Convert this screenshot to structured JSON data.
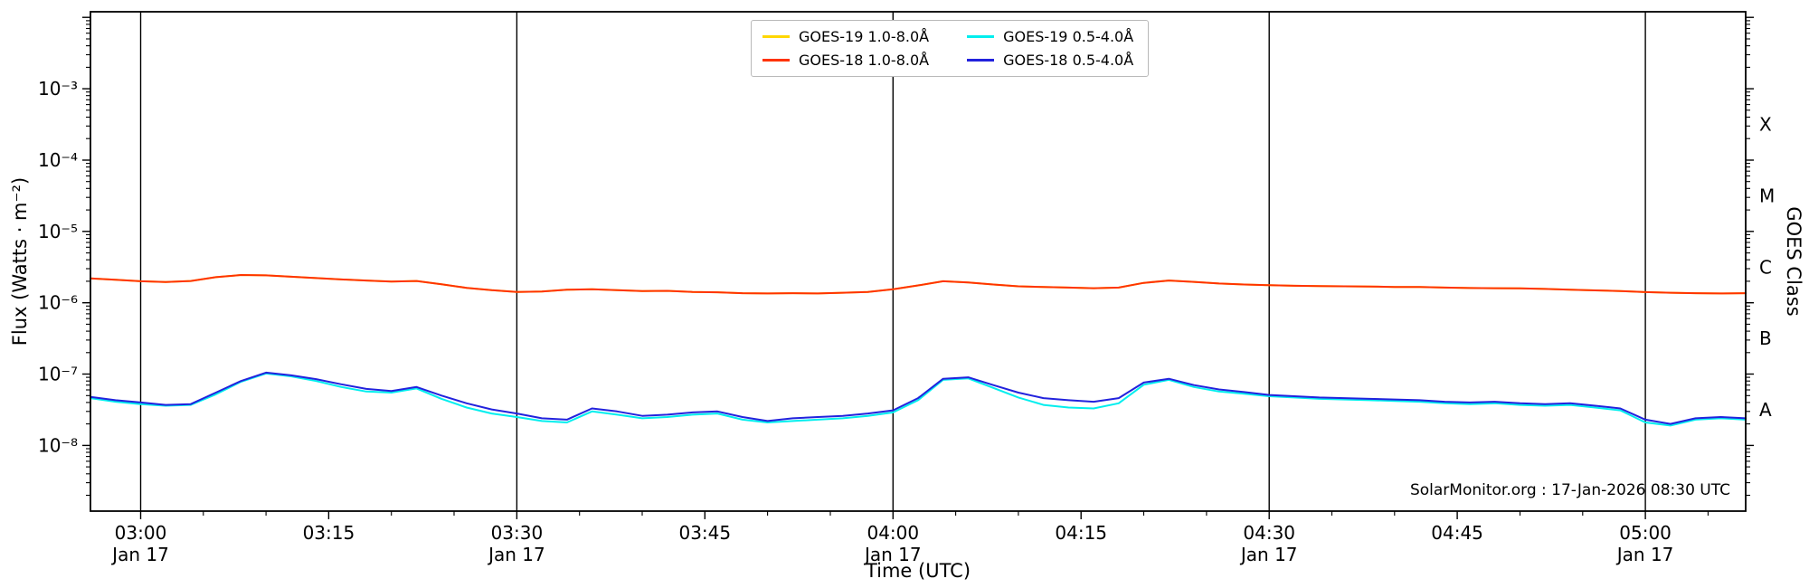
{
  "figure": {
    "xlabel": "Time (UTC)",
    "ylabel_left": "Flux (Watts · m⁻²)",
    "ylabel_right": "GOES Class",
    "watermark": "SolarMonitor.org : 17-Jan-2026 08:30 UTC"
  },
  "chart_data": {
    "type": "line",
    "title": "",
    "xlabel": "Time (UTC)",
    "ylabel": "Flux (Watts · m⁻²)",
    "ylabel_right": "GOES Class",
    "y_scale": "log",
    "ylim": [
      1.2e-09,
      0.012
    ],
    "xlim": [
      -4,
      128
    ],
    "x_unit": "minutes after 03:00 UTC on Jan 17",
    "grid": "vertical lines at each half hour",
    "legend_position": "top-center",
    "x_ticks": [
      {
        "t": 0,
        "label": "03:00",
        "sub": "Jan 17",
        "line": true
      },
      {
        "t": 15,
        "label": "03:15"
      },
      {
        "t": 30,
        "label": "03:30",
        "sub": "Jan 17",
        "line": true
      },
      {
        "t": 45,
        "label": "03:45"
      },
      {
        "t": 60,
        "label": "04:00",
        "sub": "Jan 17",
        "line": true
      },
      {
        "t": 75,
        "label": "04:15"
      },
      {
        "t": 90,
        "label": "04:30",
        "sub": "Jan 17",
        "line": true
      },
      {
        "t": 105,
        "label": "04:45"
      },
      {
        "t": 120,
        "label": "05:00",
        "sub": "Jan 17",
        "line": true
      }
    ],
    "y_ticks": [
      {
        "v": 0.001,
        "label": "10⁻³"
      },
      {
        "v": 0.0001,
        "label": "10⁻⁴"
      },
      {
        "v": 1e-05,
        "label": "10⁻⁵"
      },
      {
        "v": 1e-06,
        "label": "10⁻⁶"
      },
      {
        "v": 1e-07,
        "label": "10⁻⁷"
      },
      {
        "v": 1e-08,
        "label": "10⁻⁸"
      }
    ],
    "goes_classes": [
      {
        "label": "X",
        "v": 0.000316
      },
      {
        "label": "M",
        "v": 3.16e-05
      },
      {
        "label": "C",
        "v": 3.16e-06
      },
      {
        "label": "B",
        "v": 3.16e-07
      },
      {
        "label": "A",
        "v": 3.16e-08
      }
    ],
    "x": [
      -4,
      -2,
      0,
      2,
      4,
      6,
      8,
      10,
      12,
      14,
      16,
      18,
      20,
      22,
      24,
      26,
      28,
      30,
      32,
      34,
      36,
      38,
      40,
      42,
      44,
      46,
      48,
      50,
      52,
      54,
      56,
      58,
      60,
      62,
      64,
      66,
      68,
      70,
      72,
      74,
      76,
      78,
      80,
      82,
      84,
      86,
      88,
      90,
      92,
      94,
      96,
      98,
      100,
      102,
      104,
      106,
      108,
      110,
      112,
      114,
      116,
      118,
      120,
      122,
      124,
      126,
      128
    ],
    "series": [
      {
        "name": "GOES-19 1.0-8.0Å",
        "color": "#ffd700",
        "scale": 1e-06,
        "values": [
          2.2,
          2.1,
          2.0,
          1.95,
          2.02,
          2.28,
          2.45,
          2.42,
          2.32,
          2.22,
          2.12,
          2.05,
          1.98,
          2.02,
          1.82,
          1.62,
          1.5,
          1.42,
          1.44,
          1.52,
          1.55,
          1.5,
          1.46,
          1.47,
          1.42,
          1.4,
          1.36,
          1.35,
          1.36,
          1.35,
          1.38,
          1.42,
          1.55,
          1.75,
          2.0,
          1.92,
          1.8,
          1.7,
          1.66,
          1.63,
          1.6,
          1.63,
          1.9,
          2.05,
          1.96,
          1.86,
          1.8,
          1.76,
          1.73,
          1.71,
          1.7,
          1.69,
          1.66,
          1.66,
          1.63,
          1.61,
          1.6,
          1.59,
          1.56,
          1.52,
          1.49,
          1.46,
          1.41,
          1.38,
          1.36,
          1.35,
          1.36
        ]
      },
      {
        "name": "GOES-18 1.0-8.0Å",
        "color": "#ff3300",
        "scale": 1e-06,
        "values": [
          2.2,
          2.1,
          2.0,
          1.95,
          2.02,
          2.28,
          2.45,
          2.42,
          2.32,
          2.22,
          2.12,
          2.05,
          1.98,
          2.02,
          1.82,
          1.62,
          1.5,
          1.42,
          1.44,
          1.52,
          1.55,
          1.5,
          1.46,
          1.47,
          1.42,
          1.4,
          1.36,
          1.35,
          1.36,
          1.35,
          1.38,
          1.42,
          1.55,
          1.75,
          2.0,
          1.92,
          1.8,
          1.7,
          1.66,
          1.63,
          1.6,
          1.63,
          1.9,
          2.05,
          1.96,
          1.86,
          1.8,
          1.76,
          1.73,
          1.71,
          1.7,
          1.69,
          1.66,
          1.66,
          1.63,
          1.61,
          1.6,
          1.59,
          1.56,
          1.52,
          1.49,
          1.46,
          1.41,
          1.38,
          1.36,
          1.35,
          1.36
        ]
      },
      {
        "name": "GOES-19 0.5-4.0Å",
        "color": "#00eeee",
        "scale": 1e-08,
        "values": [
          4.6,
          4.1,
          3.8,
          3.6,
          3.7,
          5.2,
          7.8,
          10.2,
          9.3,
          8.0,
          6.6,
          5.7,
          5.5,
          6.3,
          4.5,
          3.4,
          2.8,
          2.5,
          2.2,
          2.1,
          3.0,
          2.7,
          2.4,
          2.5,
          2.7,
          2.8,
          2.3,
          2.1,
          2.2,
          2.3,
          2.4,
          2.6,
          2.9,
          4.3,
          8.3,
          8.7,
          6.4,
          4.7,
          3.7,
          3.4,
          3.3,
          3.9,
          7.1,
          8.3,
          6.6,
          5.7,
          5.3,
          4.9,
          4.7,
          4.5,
          4.4,
          4.3,
          4.2,
          4.1,
          3.9,
          3.8,
          3.9,
          3.7,
          3.6,
          3.7,
          3.4,
          3.1,
          2.1,
          1.9,
          2.3,
          2.4,
          2.3
        ]
      },
      {
        "name": "GOES-18 0.5-4.0Å",
        "color": "#2222dd",
        "scale": 1e-08,
        "values": [
          4.8,
          4.3,
          4.0,
          3.7,
          3.8,
          5.5,
          8.0,
          10.5,
          9.6,
          8.5,
          7.2,
          6.2,
          5.8,
          6.6,
          5.0,
          3.9,
          3.2,
          2.8,
          2.4,
          2.3,
          3.3,
          3.0,
          2.6,
          2.7,
          2.9,
          3.0,
          2.5,
          2.2,
          2.4,
          2.5,
          2.6,
          2.8,
          3.1,
          4.6,
          8.6,
          9.0,
          7.0,
          5.5,
          4.6,
          4.3,
          4.1,
          4.6,
          7.6,
          8.6,
          7.0,
          6.1,
          5.6,
          5.1,
          4.9,
          4.7,
          4.6,
          4.5,
          4.4,
          4.3,
          4.1,
          4.0,
          4.1,
          3.9,
          3.8,
          3.9,
          3.6,
          3.3,
          2.3,
          2.0,
          2.4,
          2.5,
          2.4
        ]
      }
    ]
  }
}
